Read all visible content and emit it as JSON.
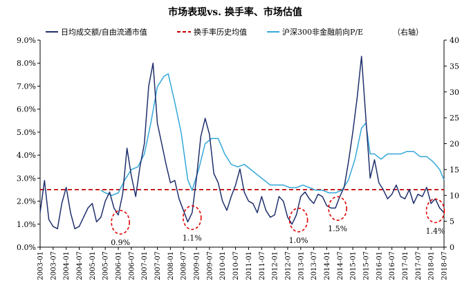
{
  "chart_data": {
    "type": "line",
    "title": "市场表现vs. 换手率、市场估值",
    "legend_position": "top",
    "grid": false,
    "y_left": {
      "min": 0,
      "max": 9,
      "unit": "%",
      "ticks": [
        "0.0%",
        "1.0%",
        "2.0%",
        "3.0%",
        "4.0%",
        "5.0%",
        "6.0%",
        "7.0%",
        "8.0%",
        "9.0%"
      ]
    },
    "y_right": {
      "min": 0,
      "max": 40,
      "ticks": [
        "0",
        "5",
        "10",
        "15",
        "20",
        "25",
        "30",
        "35",
        "40"
      ],
      "label": "右轴"
    },
    "x_ticks": [
      "2003-01",
      "2003-07",
      "2004-01",
      "2004-07",
      "2005-01",
      "2005-07",
      "2006-01",
      "2006-07",
      "2007-01",
      "2007-07",
      "2008-01",
      "2008-07",
      "2009-01",
      "2009-07",
      "2010-01",
      "2010-07",
      "2011-01",
      "2011-07",
      "2012-01",
      "2012-07",
      "2013-01",
      "2013-07",
      "2014-01",
      "2014-07",
      "2015-01",
      "2015-07",
      "2016-01",
      "2016-07",
      "2017-01",
      "2017-07",
      "2018-01",
      "2018-07"
    ],
    "series": [
      {
        "name": "日均成交额/自由流通市值",
        "color": "#1f2f6b",
        "axis": "left",
        "style": "solid",
        "x": [
          "2003-01",
          "2003-03",
          "2003-05",
          "2003-07",
          "2003-09",
          "2003-11",
          "2004-01",
          "2004-03",
          "2004-05",
          "2004-07",
          "2004-09",
          "2004-11",
          "2005-01",
          "2005-03",
          "2005-05",
          "2005-07",
          "2005-09",
          "2005-11",
          "2006-01",
          "2006-03",
          "2006-05",
          "2006-07",
          "2006-09",
          "2006-11",
          "2007-01",
          "2007-03",
          "2007-05",
          "2007-07",
          "2007-09",
          "2007-11",
          "2008-01",
          "2008-03",
          "2008-05",
          "2008-07",
          "2008-09",
          "2008-11",
          "2009-01",
          "2009-03",
          "2009-05",
          "2009-07",
          "2009-09",
          "2009-11",
          "2010-01",
          "2010-03",
          "2010-05",
          "2010-07",
          "2010-09",
          "2010-11",
          "2011-01",
          "2011-03",
          "2011-05",
          "2011-07",
          "2011-09",
          "2011-11",
          "2012-01",
          "2012-03",
          "2012-05",
          "2012-07",
          "2012-09",
          "2012-11",
          "2013-01",
          "2013-03",
          "2013-05",
          "2013-07",
          "2013-09",
          "2013-11",
          "2014-01",
          "2014-03",
          "2014-05",
          "2014-07",
          "2014-09",
          "2014-11",
          "2015-01",
          "2015-03",
          "2015-05",
          "2015-07",
          "2015-09",
          "2015-11",
          "2016-01",
          "2016-03",
          "2016-05",
          "2016-07",
          "2016-09",
          "2016-11",
          "2017-01",
          "2017-03",
          "2017-05",
          "2017-07",
          "2017-09",
          "2017-11",
          "2018-01",
          "2018-03",
          "2018-05",
          "2018-07"
        ],
        "values": [
          1.5,
          2.9,
          1.2,
          0.9,
          0.8,
          1.9,
          2.6,
          1.5,
          0.8,
          0.9,
          1.3,
          1.7,
          1.9,
          1.1,
          1.3,
          2.0,
          2.4,
          1.7,
          1.4,
          2.3,
          4.3,
          3.1,
          2.2,
          3.5,
          4.5,
          7.0,
          8.0,
          5.4,
          4.5,
          3.6,
          2.8,
          2.9,
          2.1,
          1.6,
          1.1,
          1.5,
          3.0,
          4.8,
          5.6,
          4.9,
          3.2,
          2.8,
          2.0,
          1.6,
          2.2,
          2.7,
          3.4,
          2.4,
          2.0,
          1.9,
          1.5,
          2.2,
          1.6,
          1.3,
          1.4,
          2.2,
          2.0,
          1.3,
          1.0,
          1.4,
          2.2,
          2.4,
          2.1,
          1.9,
          2.3,
          2.2,
          1.8,
          1.7,
          1.7,
          2.2,
          2.6,
          3.7,
          5.0,
          6.5,
          8.3,
          5.6,
          3.0,
          3.8,
          2.8,
          2.5,
          2.1,
          2.3,
          2.7,
          2.2,
          2.1,
          2.5,
          1.9,
          2.3,
          2.2,
          2.6,
          1.9,
          2.1,
          1.7,
          1.5
        ]
      },
      {
        "name": "换手率历史均值",
        "color": "#c00000",
        "axis": "left",
        "style": "dashed",
        "x": [
          "2003-01",
          "2018-07"
        ],
        "values": [
          2.5,
          2.5
        ]
      },
      {
        "name": "沪深300非金融前向P/E",
        "color": "#33a7d8",
        "axis": "right",
        "style": "solid",
        "x": [
          "2005-05",
          "2005-07",
          "2005-10",
          "2006-01",
          "2006-04",
          "2006-07",
          "2006-10",
          "2007-01",
          "2007-04",
          "2007-07",
          "2007-10",
          "2007-12",
          "2008-03",
          "2008-06",
          "2008-09",
          "2008-11",
          "2009-02",
          "2009-05",
          "2009-08",
          "2009-11",
          "2010-02",
          "2010-05",
          "2010-08",
          "2010-11",
          "2011-02",
          "2011-05",
          "2011-08",
          "2011-11",
          "2012-02",
          "2012-05",
          "2012-08",
          "2012-11",
          "2013-02",
          "2013-05",
          "2013-08",
          "2013-11",
          "2014-02",
          "2014-05",
          "2014-08",
          "2014-11",
          "2015-02",
          "2015-05",
          "2015-07",
          "2015-09",
          "2015-11",
          "2016-02",
          "2016-05",
          "2016-08",
          "2016-11",
          "2017-02",
          "2017-05",
          "2017-08",
          "2017-11",
          "2018-02",
          "2018-05",
          "2018-07"
        ],
        "values": [
          11,
          10.5,
          10,
          10.5,
          13,
          15,
          15.5,
          18,
          24,
          31,
          33,
          33.5,
          28,
          22,
          13,
          11,
          15,
          20,
          21,
          21,
          18,
          16,
          15.5,
          16,
          15,
          14,
          13,
          12,
          12,
          12,
          11.5,
          11.5,
          12,
          11.5,
          11,
          11,
          10.5,
          10.5,
          11,
          13,
          17,
          23,
          24,
          18,
          18,
          17,
          18,
          18,
          18,
          18.5,
          18.5,
          17.5,
          17.5,
          16.5,
          15,
          13
        ]
      }
    ],
    "annotations": [
      {
        "label": "0.9%",
        "x": "2006-02",
        "y": 0.9
      },
      {
        "label": "1.1%",
        "x": "2008-11",
        "y": 1.1
      },
      {
        "label": "1.0%",
        "x": "2012-12",
        "y": 1.0
      },
      {
        "label": "1.5%",
        "x": "2014-06",
        "y": 1.5
      },
      {
        "label": "1.4%",
        "x": "2018-03",
        "y": 1.4
      }
    ]
  }
}
